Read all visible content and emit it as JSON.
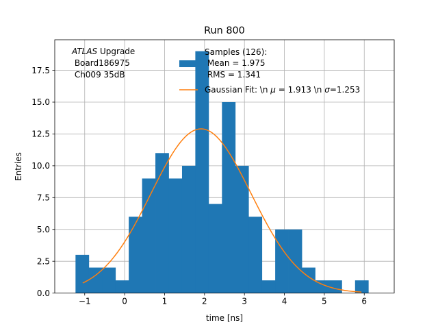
{
  "chart_data": {
    "type": "bar",
    "title": "Run 800",
    "xlabel": "time [ns]",
    "ylabel": "Entries",
    "xlim": [
      -1.75,
      6.75
    ],
    "ylim": [
      0,
      19.9
    ],
    "grid": true,
    "legend_location": "top-right",
    "annotation": {
      "prefix": "ATLAS",
      "suffix": " Upgrade",
      "line2": " Board186975",
      "line3": " Ch009 35dB"
    },
    "x_ticks": [
      {
        "value": -1,
        "label": "−1"
      },
      {
        "value": 0,
        "label": "0"
      },
      {
        "value": 1,
        "label": "1"
      },
      {
        "value": 2,
        "label": "2"
      },
      {
        "value": 3,
        "label": "3"
      },
      {
        "value": 4,
        "label": "4"
      },
      {
        "value": 5,
        "label": "5"
      },
      {
        "value": 6,
        "label": "6"
      }
    ],
    "y_ticks": [
      {
        "value": 0,
        "label": "0.0"
      },
      {
        "value": 2.5,
        "label": "2.5"
      },
      {
        "value": 5,
        "label": "5.0"
      },
      {
        "value": 7.5,
        "label": "7.5"
      },
      {
        "value": 10,
        "label": "10.0"
      },
      {
        "value": 12.5,
        "label": "12.5"
      },
      {
        "value": 15,
        "label": "15.0"
      },
      {
        "value": 17.5,
        "label": "17.5"
      }
    ],
    "histogram": {
      "name": "Samples (126):",
      "name_line2": " Mean = 1.975",
      "name_line3": " RMS = 1.341",
      "color": "#1f77b4",
      "bin_edges": [
        -1.23,
        -0.897,
        -0.563,
        -0.23,
        0.103,
        0.437,
        0.77,
        1.103,
        1.437,
        1.77,
        2.103,
        2.437,
        2.77,
        3.103,
        3.437,
        3.77,
        4.103,
        4.437,
        4.77,
        5.103,
        5.437,
        5.77,
        6.103
      ],
      "counts": [
        3,
        2,
        2,
        1,
        6,
        9,
        11,
        9,
        10,
        19,
        7,
        15,
        10,
        6,
        1,
        5,
        5,
        2,
        1,
        1,
        0,
        1
      ]
    },
    "fit": {
      "name": "Gaussian Fit: \\n $\\mu$ = 1.913 \\n $\\sigma$=1.253",
      "label_prefix": "Gaussian Fit: \\n ",
      "label_mu": "μ",
      "label_mid": " = 1.913 \\n ",
      "label_sigma": "σ",
      "label_suffix": "=1.253",
      "color": "#ff7f0e",
      "amplitude": 12.9,
      "mu": 1.913,
      "sigma": 1.253,
      "x_range": [
        -1.05,
        5.93
      ]
    }
  }
}
